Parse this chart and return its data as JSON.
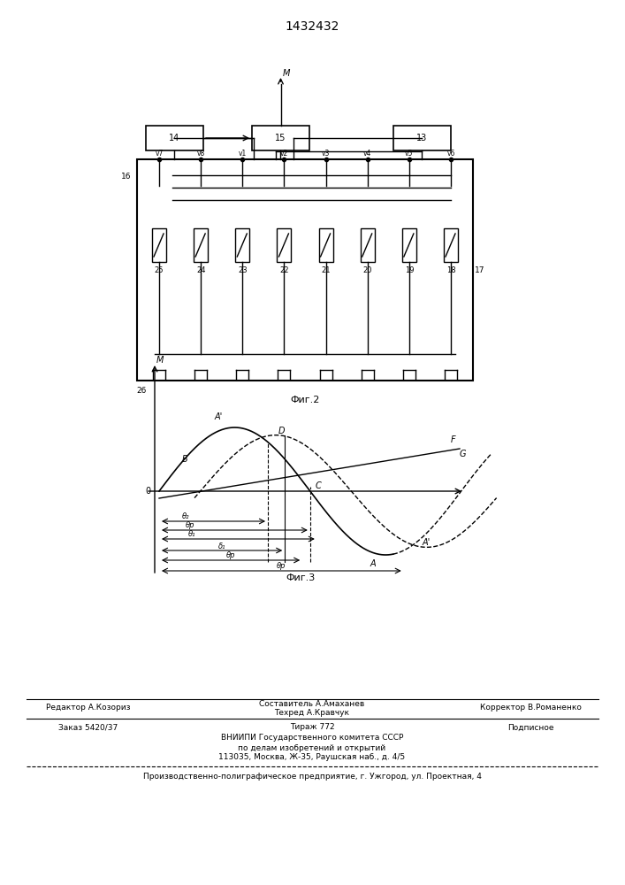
{
  "title": "1432432",
  "fig2_label": "Фиг.2",
  "fig3_label": "Фиг.3",
  "background": "#ffffff",
  "line_color": "#000000",
  "text_color": "#000000"
}
